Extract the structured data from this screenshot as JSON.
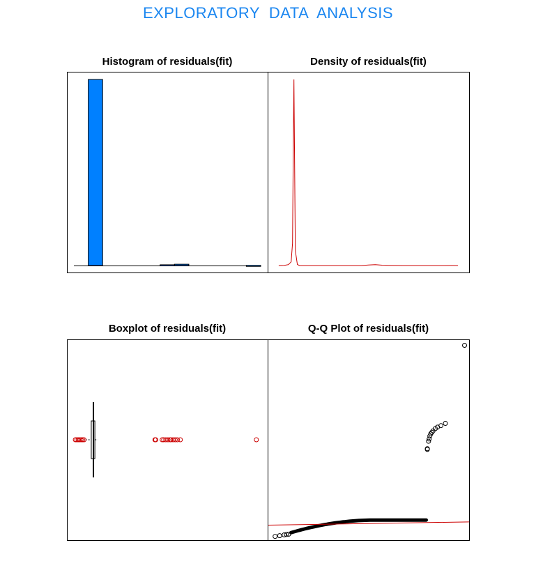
{
  "page": {
    "title": "EXPLORATORY  DATA  ANALYSIS",
    "title_color": "#1a86f0"
  },
  "colors": {
    "histogram_fill": "#0080ff",
    "density_line": "#cc0000",
    "outlier": "#cc0000",
    "qq_line": "#cc0000",
    "qq_points": "#000000"
  },
  "chart_data": [
    {
      "type": "bar",
      "title": "Histogram of residuals(fit)",
      "xlabel": "",
      "ylabel": "",
      "axes_shown": false,
      "bins": [
        {
          "x0": 0,
          "x1": 1,
          "count": 1000
        },
        {
          "x0": 1,
          "x1": 2,
          "count": 0
        },
        {
          "x0": 2,
          "x1": 3,
          "count": 0
        },
        {
          "x0": 3,
          "x1": 4,
          "count": 0
        },
        {
          "x0": 4,
          "x1": 5,
          "count": 0
        },
        {
          "x0": 5,
          "x1": 6,
          "count": 4
        },
        {
          "x0": 6,
          "x1": 7,
          "count": 7
        },
        {
          "x0": 7,
          "x1": 8,
          "count": 0
        },
        {
          "x0": 8,
          "x1": 9,
          "count": 0
        },
        {
          "x0": 9,
          "x1": 10,
          "count": 0
        },
        {
          "x0": 10,
          "x1": 11,
          "count": 0
        },
        {
          "x0": 11,
          "x1": 12,
          "count": 1
        }
      ],
      "xlim": [
        -1,
        12
      ],
      "ylim": [
        0,
        1000
      ]
    },
    {
      "type": "line",
      "title": "Density of residuals(fit)",
      "xlabel": "",
      "ylabel": "",
      "axes_shown": false,
      "x": [
        -1,
        -0.6,
        -0.3,
        -0.1,
        0.0,
        0.05,
        0.1,
        0.2,
        0.35,
        0.5,
        1,
        2,
        3,
        4,
        5,
        5.5,
        6,
        6.5,
        7,
        8,
        9,
        10,
        11,
        11.5,
        12
      ],
      "y": [
        0,
        0.1,
        0.5,
        2,
        12,
        60,
        100,
        8,
        0.6,
        0,
        0,
        0,
        0,
        0,
        0,
        0.25,
        0.45,
        0.2,
        0.1,
        0,
        0,
        0,
        0,
        0.05,
        0
      ],
      "xlim": [
        -1.3,
        12.3
      ],
      "ylim": [
        0,
        100
      ]
    },
    {
      "type": "scatter",
      "title": "Boxplot of residuals(fit)",
      "xlabel": "",
      "ylabel": "",
      "axes_shown": false,
      "box": {
        "whisker_low": 0.2,
        "q1": 0.6,
        "median": 0.75,
        "q3": 0.85,
        "whisker_high": 1.05
      },
      "outliers": [
        -0.5,
        -0.4,
        -0.3,
        -0.2,
        -0.1,
        0.0,
        0.1,
        5.0,
        5.05,
        5.5,
        5.6,
        5.75,
        5.9,
        6.05,
        6.1,
        6.25,
        6.4,
        6.55,
        6.75,
        12.0
      ],
      "xlim": [
        -0.6,
        12.3
      ]
    },
    {
      "type": "scatter",
      "title": "Q-Q Plot of residuals(fit)",
      "xlabel": "",
      "ylabel": "",
      "axes_shown": false,
      "dense_band": {
        "x0": -2.8,
        "x1": 3.2,
        "y0": -0.6,
        "y1": 0.25
      },
      "points": [
        {
          "x": -3.5,
          "y": -0.85
        },
        {
          "x": -3.3,
          "y": -0.8
        },
        {
          "x": -3.1,
          "y": -0.75
        },
        {
          "x": -3.0,
          "y": -0.72
        },
        {
          "x": -2.9,
          "y": -0.7
        },
        {
          "x": 3.25,
          "y": 5.0
        },
        {
          "x": 3.25,
          "y": 5.05
        },
        {
          "x": 3.3,
          "y": 5.55
        },
        {
          "x": 3.33,
          "y": 5.7
        },
        {
          "x": 3.36,
          "y": 5.9
        },
        {
          "x": 3.4,
          "y": 6.05
        },
        {
          "x": 3.45,
          "y": 6.15
        },
        {
          "x": 3.5,
          "y": 6.25
        },
        {
          "x": 3.6,
          "y": 6.4
        },
        {
          "x": 3.7,
          "y": 6.5
        },
        {
          "x": 3.85,
          "y": 6.6
        },
        {
          "x": 4.05,
          "y": 6.75
        },
        {
          "x": 4.9,
          "y": 12.0
        }
      ],
      "reference_line": {
        "intercept": 0.0,
        "slope": 0.025
      },
      "xlim": [
        -3.8,
        5.1
      ],
      "ylim": [
        -1.1,
        12.4
      ]
    }
  ]
}
